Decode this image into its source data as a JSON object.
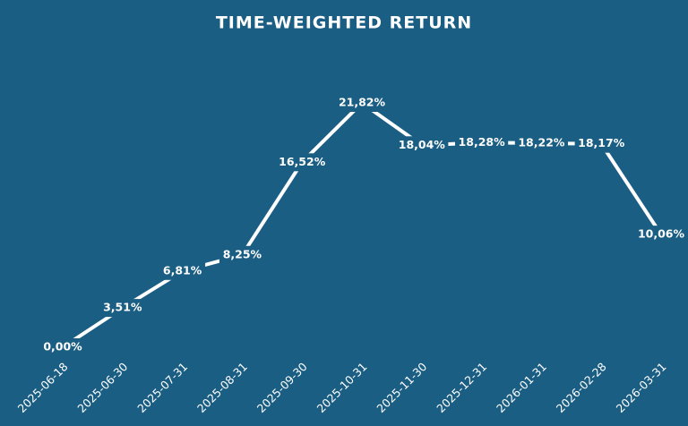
{
  "chart_data": {
    "type": "line",
    "title": "TIME-WEIGHTED RETURN",
    "categories": [
      "2025-06-18",
      "2025-06-30",
      "2025-07-31",
      "2025-08-31",
      "2025-09-30",
      "2025-10-31",
      "2025-11-30",
      "2025-12-31",
      "2026-01-31",
      "2026-02-28",
      "2026-03-31"
    ],
    "values": [
      0,
      3.51,
      6.81,
      8.25,
      16.52,
      21.82,
      18.04,
      18.28,
      18.22,
      18.17,
      10.06
    ],
    "value_labels": [
      "0,00%",
      "3,51%",
      "6,81%",
      "8,25%",
      "16,52%",
      "21,82%",
      "18,04%",
      "18,28%",
      "18,22%",
      "18,17%",
      "10,06%"
    ],
    "color": "#ffffff"
  }
}
